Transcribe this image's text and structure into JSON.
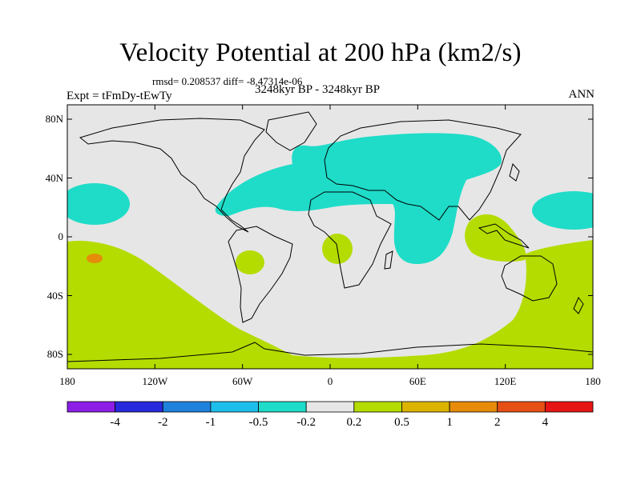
{
  "header": {
    "title": "Velocity Potential at 200 hPa (km2/s)",
    "stats": "rmsd= 0.208537  diff= -8.47314e-06",
    "experiment": "Expt = tFmDy-tEwTy",
    "period": "3248kyr BP - 3248kyr BP",
    "season": "ANN"
  },
  "axes": {
    "lat_ticks": [
      "80N",
      "40N",
      "0",
      "40S",
      "80S"
    ],
    "lon_ticks": [
      "180",
      "120W",
      "60W",
      "0",
      "60E",
      "120E",
      "180"
    ]
  },
  "colorbar": {
    "labels": [
      "-4",
      "-2",
      "-1",
      "-0.5",
      "-0.2",
      "0.2",
      "0.5",
      "1",
      "2",
      "4"
    ],
    "colors": [
      "#8c1ee6",
      "#2828dc",
      "#1e82dc",
      "#1ebeeb",
      "#1edcc8",
      "#e6e6e6",
      "#b4dc00",
      "#dcb400",
      "#e68c0a",
      "#e65014",
      "#e61414"
    ]
  },
  "map": {
    "background_color": "#e6e6e6",
    "negative_color": "#1edcc8",
    "positive_color": "#b4dc00",
    "extreme_color": "#e68c0a"
  }
}
